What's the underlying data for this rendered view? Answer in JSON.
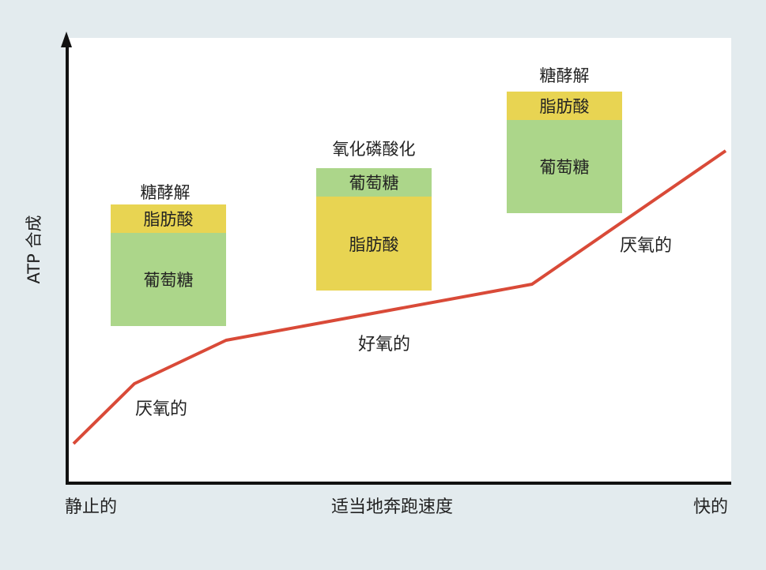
{
  "axes": {
    "y_label": "ATP 合成",
    "x_left": "静止的",
    "x_mid": "适当地奔跑速度",
    "x_right": "快的"
  },
  "curve": {
    "label_anaerobic_low": "厌氧的",
    "label_aerobic": "好氧的",
    "label_anaerobic_high": "厌氧的",
    "color": "#d94a38"
  },
  "blocks": [
    {
      "title": "糖酵解",
      "segments": [
        {
          "label": "脂肪酸",
          "type": "fat"
        },
        {
          "label": "葡萄糖",
          "type": "glucose"
        }
      ]
    },
    {
      "title": "氧化磷酸化",
      "segments": [
        {
          "label": "葡萄糖",
          "type": "glucose"
        },
        {
          "label": "脂肪酸",
          "type": "fat"
        }
      ]
    },
    {
      "title": "糖酵解",
      "segments": [
        {
          "label": "脂肪酸",
          "type": "fat"
        },
        {
          "label": "葡萄糖",
          "type": "glucose"
        }
      ]
    }
  ],
  "colors": {
    "fat": "#e8d452",
    "glucose": "#acd68a",
    "background": "#e3ebee",
    "panel": "#ffffff"
  }
}
